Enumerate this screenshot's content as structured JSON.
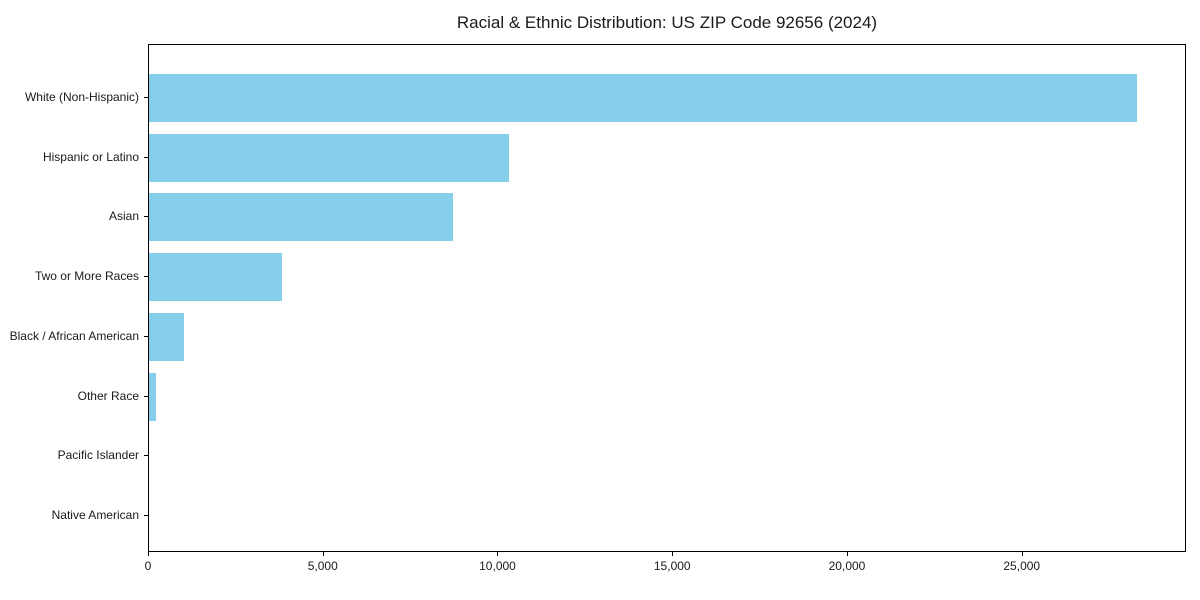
{
  "chart": {
    "title": "Racial & Ethnic Distribution: US ZIP Code 92656 (2024)",
    "bar_color": "#87CEEB",
    "axis_color": "#000000",
    "text_color": "#1a1a1a"
  },
  "chart_data": {
    "type": "bar",
    "orientation": "horizontal",
    "title": "Racial & Ethnic Distribution: US ZIP Code 92656 (2024)",
    "categories": [
      "White (Non-Hispanic)",
      "Hispanic or Latino",
      "Asian",
      "Two or More Races",
      "Black / African American",
      "Other Race",
      "Pacific Islander",
      "Native American"
    ],
    "values": [
      28270,
      10290,
      8690,
      3810,
      1000,
      190,
      0,
      0
    ],
    "xlabel": "",
    "ylabel": "",
    "xlim": [
      0,
      29700
    ],
    "x_ticks": [
      0,
      5000,
      10000,
      15000,
      20000,
      25000
    ],
    "x_tick_labels": [
      "0",
      "5,000",
      "10,000",
      "15,000",
      "20,000",
      "25,000"
    ],
    "grid": false,
    "legend_position": "none",
    "bar_color": "#87CEEB",
    "background_color": "#ffffff"
  }
}
